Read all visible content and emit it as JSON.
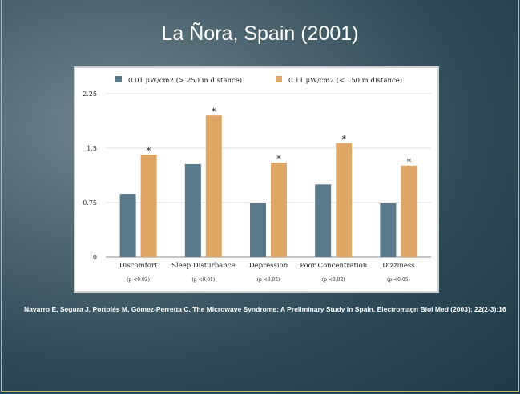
{
  "slide": {
    "title": "La Ñora, Spain (2001)"
  },
  "citation": {
    "parts": [
      {
        "text": "Navarro E, Segura J, ",
        "spell": false
      },
      {
        "text": "Portolés",
        "spell": true
      },
      {
        "text": " M, ",
        "spell": false
      },
      {
        "text": "Gómez-Perretta",
        "spell": true
      },
      {
        "text": " C. The Microwave Syndrome: A Preliminary Study in Spain. ",
        "spell": false
      },
      {
        "text": "Electromagn",
        "spell": true
      },
      {
        "text": " ",
        "spell": false
      },
      {
        "text": "Biol",
        "spell": true
      },
      {
        "text": " Med (2003); 22(2-3):16",
        "spell": false
      }
    ]
  },
  "colors": {
    "series_1": "#5a7a8c",
    "series_2": "#dfa766"
  },
  "chart_data": {
    "type": "bar",
    "categories": [
      "Discomfort",
      "Sleep Disturbance",
      "Depression",
      "Poor Concentration",
      "Dizziness"
    ],
    "p_values": [
      "(p <0.02)",
      "(p <0.01)",
      "(p <0.02)",
      "(p <0.02)",
      "(p <0.05)"
    ],
    "series": [
      {
        "name": "0.01 μW/cm2 (> 250 m distance)",
        "values": [
          0.87,
          1.28,
          0.74,
          1.0,
          0.74
        ]
      },
      {
        "name": "0.11 μW/cm2 (< 150 m distance)",
        "values": [
          1.41,
          1.95,
          1.3,
          1.57,
          1.26
        ]
      }
    ],
    "significance_marker": "*",
    "yticks": [
      0,
      0.75,
      1.5,
      2.25
    ],
    "ytick_labels": [
      "0",
      "0.75",
      "1.5",
      "2.25"
    ],
    "ylim": [
      0,
      2.25
    ],
    "grid": true,
    "legend": "top"
  }
}
